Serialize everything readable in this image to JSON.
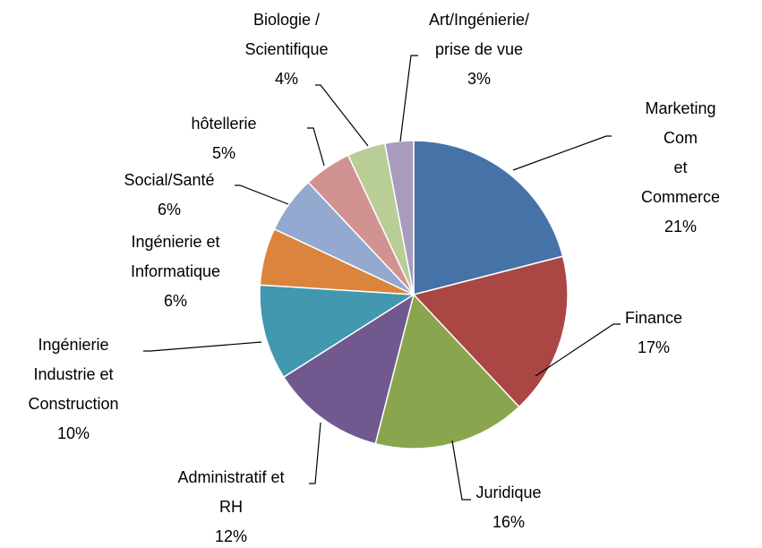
{
  "chart_data": {
    "type": "pie",
    "categories": [
      "Marketing Com\net Commerce",
      "Finance",
      "Juridique",
      "Administratif et\nRH",
      "Ingénierie\nIndustrie et\nConstruction",
      "Ingénierie et\nInformatique",
      "Social/Santé",
      "hôtellerie",
      "Biologie /\nScientifique",
      "Art/Ingénierie/\nprise de vue"
    ],
    "values": [
      21,
      17,
      16,
      12,
      10,
      6,
      6,
      5,
      4,
      3
    ],
    "value_labels": [
      "21%",
      "17%",
      "16%",
      "12%",
      "10%",
      "6%",
      "6%",
      "5%",
      "4%",
      "3%"
    ],
    "colors": [
      "#4572a7",
      "#aa4643",
      "#89a54e",
      "#71588f",
      "#4198af",
      "#db843d",
      "#93a9cf",
      "#d19392",
      "#b9cd96",
      "#a99bbd"
    ]
  }
}
